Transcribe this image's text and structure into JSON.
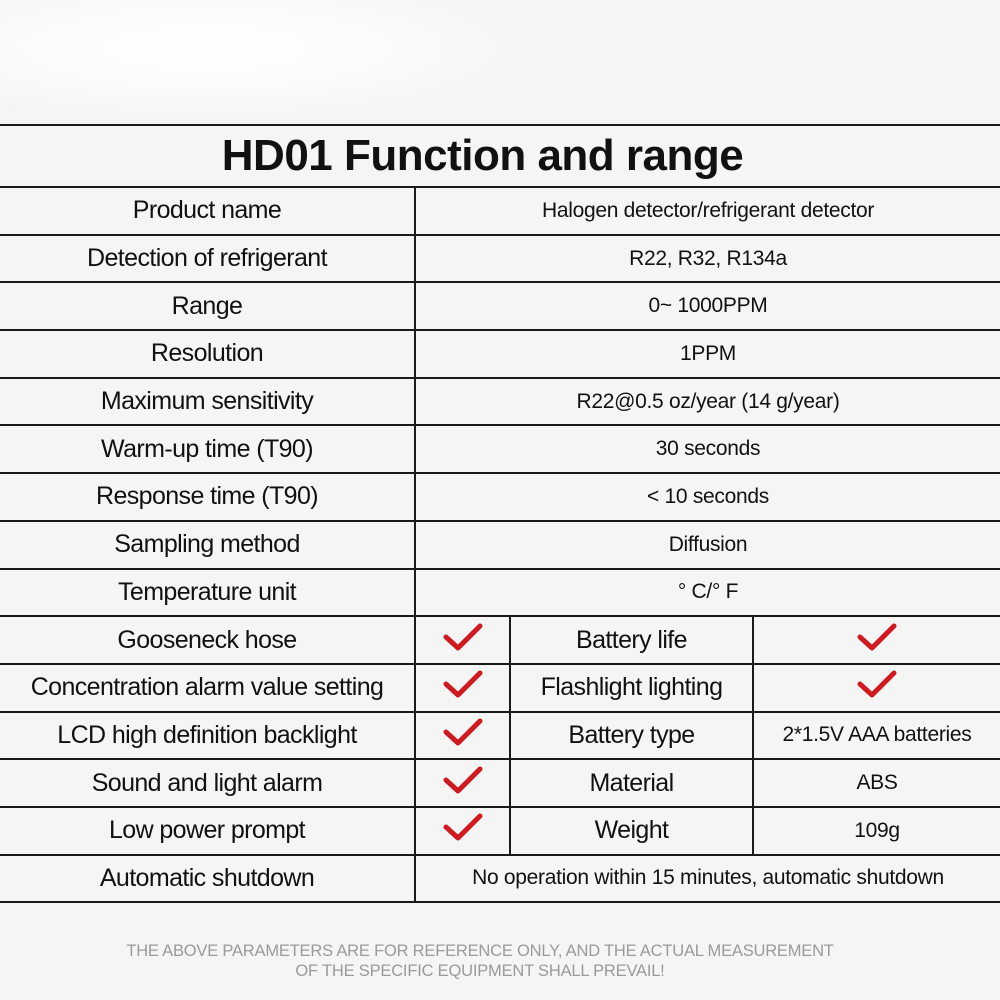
{
  "title": "HD01 Function and range",
  "colors": {
    "check": "#d11a1f",
    "line": "#1a1a1a",
    "footer": "#9a9a9a"
  },
  "rows": [
    {
      "label": "Product name",
      "value": "Halogen detector/refrigerant detector"
    },
    {
      "label": "Detection of refrigerant",
      "value": "R22, R32, R134a"
    },
    {
      "label": "Range",
      "value": "0~ 1000PPM"
    },
    {
      "label": "Resolution",
      "value": "1PPM"
    },
    {
      "label": "Maximum sensitivity",
      "value": "R22@0.5 oz/year (14 g/year)"
    },
    {
      "label": "Warm-up time (T90)",
      "value": "30 seconds"
    },
    {
      "label": "Response time (T90)",
      "value": "< 10 seconds"
    },
    {
      "label": "Sampling method",
      "value": "Diffusion"
    },
    {
      "label": "Temperature unit",
      "value": "° C/° F"
    }
  ],
  "feature_rows": [
    {
      "left": "Gooseneck hose",
      "left_icon": "check-icon",
      "right": "Battery life",
      "right_icon": "check-icon",
      "right_value": ""
    },
    {
      "left": "Concentration alarm value setting",
      "left_icon": "check-icon",
      "right": "Flashlight lighting",
      "right_icon": "check-icon",
      "right_value": ""
    },
    {
      "left": "LCD high definition backlight",
      "left_icon": "check-icon",
      "right": "Battery type",
      "right_icon": "",
      "right_value": "2*1.5V AAA batteries"
    },
    {
      "left": "Sound and light alarm",
      "left_icon": "check-icon",
      "right": "Material",
      "right_icon": "",
      "right_value": "ABS"
    },
    {
      "left": "Low power prompt",
      "left_icon": "check-icon",
      "right": "Weight",
      "right_icon": "",
      "right_value": "109g"
    }
  ],
  "last_row": {
    "label": "Automatic shutdown",
    "value": "No operation within 15 minutes, automatic shutdown"
  },
  "footer": {
    "line1": "THE ABOVE PARAMETERS ARE FOR REFERENCE ONLY, AND THE ACTUAL MEASUREMENT",
    "line2": "OF THE SPECIFIC EQUIPMENT SHALL PREVAIL!"
  }
}
